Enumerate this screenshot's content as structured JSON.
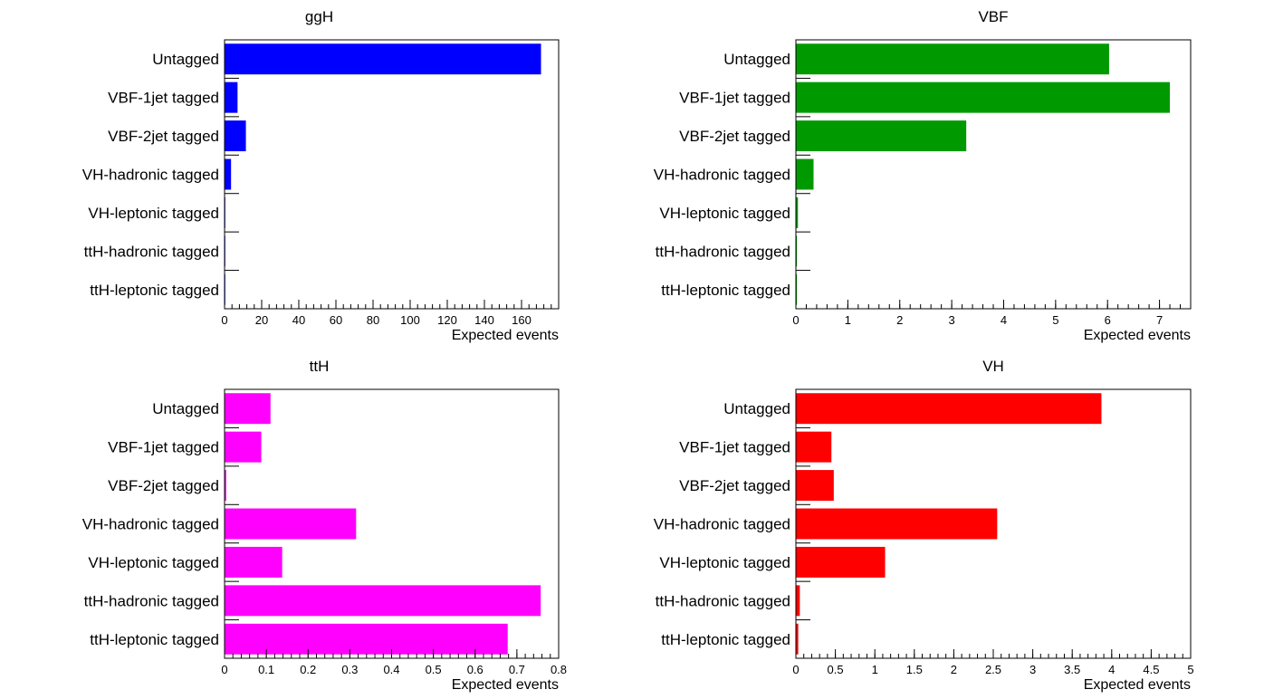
{
  "chart_data": [
    {
      "type": "bar",
      "orientation": "horizontal",
      "title": "ggH",
      "xlabel": "Expected events",
      "ylabel": "",
      "color": "#0000ff",
      "categories": [
        "Untagged",
        "VBF-1jet tagged",
        "VBF-2jet tagged",
        "VH-hadronic tagged",
        "VH-leptonic tagged",
        "ttH-hadronic tagged",
        "ttH-leptonic tagged"
      ],
      "values": [
        170.5,
        7.0,
        11.5,
        3.5,
        0.3,
        0.3,
        0.2
      ],
      "xlim": [
        0,
        180
      ],
      "xticks": [
        0,
        20,
        40,
        60,
        80,
        100,
        120,
        140,
        160
      ],
      "xtick_labels": [
        "0",
        "20",
        "40",
        "60",
        "80",
        "100",
        "120",
        "140",
        "160"
      ],
      "minor_step": 4,
      "grid": false
    },
    {
      "type": "bar",
      "orientation": "horizontal",
      "title": "VBF",
      "xlabel": "Expected events",
      "ylabel": "",
      "color": "#009a00",
      "categories": [
        "Untagged",
        "VBF-1jet tagged",
        "VBF-2jet tagged",
        "VH-hadronic tagged",
        "VH-leptonic tagged",
        "ttH-hadronic tagged",
        "ttH-leptonic tagged"
      ],
      "values": [
        6.03,
        7.2,
        3.28,
        0.34,
        0.04,
        0.02,
        0.02
      ],
      "xlim": [
        0,
        7.6
      ],
      "xticks": [
        0,
        1,
        2,
        3,
        4,
        5,
        6,
        7
      ],
      "xtick_labels": [
        "0",
        "1",
        "2",
        "3",
        "4",
        "5",
        "6",
        "7"
      ],
      "minor_step": 0.2,
      "grid": false
    },
    {
      "type": "bar",
      "orientation": "horizontal",
      "title": "ttH",
      "xlabel": "Expected events",
      "ylabel": "",
      "color": "#ff00ff",
      "categories": [
        "Untagged",
        "VBF-1jet tagged",
        "VBF-2jet tagged",
        "VH-hadronic tagged",
        "VH-leptonic tagged",
        "ttH-hadronic tagged",
        "ttH-leptonic tagged"
      ],
      "values": [
        0.11,
        0.088,
        0.004,
        0.315,
        0.138,
        0.757,
        0.678
      ],
      "xlim": [
        0,
        0.8
      ],
      "xticks": [
        0,
        0.1,
        0.2,
        0.3,
        0.4,
        0.5,
        0.6,
        0.7,
        0.8
      ],
      "xtick_labels": [
        "0",
        "0.1",
        "0.2",
        "0.3",
        "0.4",
        "0.5",
        "0.6",
        "0.7",
        "0.8"
      ],
      "minor_step": 0.02,
      "grid": false
    },
    {
      "type": "bar",
      "orientation": "horizontal",
      "title": "VH",
      "xlabel": "Expected events",
      "ylabel": "",
      "color": "#ff0000",
      "categories": [
        "Untagged",
        "VBF-1jet tagged",
        "VBF-2jet tagged",
        "VH-hadronic tagged",
        "VH-leptonic tagged",
        "ttH-hadronic tagged",
        "ttH-leptonic tagged"
      ],
      "values": [
        3.87,
        0.45,
        0.48,
        2.55,
        1.13,
        0.05,
        0.03
      ],
      "xlim": [
        0,
        5
      ],
      "xticks": [
        0,
        0.5,
        1,
        1.5,
        2,
        2.5,
        3,
        3.5,
        4,
        4.5,
        5
      ],
      "xtick_labels": [
        "0",
        "0.5",
        "1",
        "1.5",
        "2",
        "2.5",
        "3",
        "3.5",
        "4",
        "4.5",
        "5"
      ],
      "minor_step": 0.1,
      "grid": false
    }
  ]
}
